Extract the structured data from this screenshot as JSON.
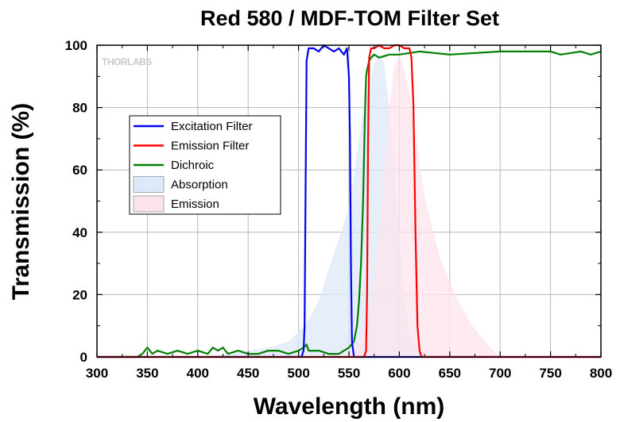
{
  "chart_data": {
    "type": "line",
    "title": "Red 580 / MDF-TOM Filter Set",
    "xlabel": "Wavelength (nm)",
    "ylabel": "Transmission (%)",
    "xlim": [
      300,
      800
    ],
    "ylim": [
      0,
      100
    ],
    "xticks": [
      300,
      350,
      400,
      450,
      500,
      550,
      600,
      650,
      700,
      750,
      800
    ],
    "yticks": [
      0,
      20,
      40,
      60,
      80,
      100
    ],
    "grid": true,
    "legend_position": "center-left",
    "watermark": "THORLABS",
    "series": [
      {
        "name": "Excitation Filter",
        "kind": "line",
        "color": "#0000ee",
        "x": [
          300,
          503,
          505,
          506,
          507,
          508,
          510,
          515,
          520,
          525,
          530,
          535,
          540,
          545,
          548,
          550,
          551,
          552,
          553,
          555,
          558,
          560,
          800
        ],
        "y": [
          0,
          0,
          2,
          10,
          55,
          95,
          99,
          99,
          98,
          100,
          99,
          98,
          99,
          97,
          99,
          90,
          70,
          30,
          5,
          0,
          0,
          0,
          0
        ]
      },
      {
        "name": "Emission Filter",
        "kind": "line",
        "color": "#ff0000",
        "x": [
          300,
          565,
          567,
          568,
          569,
          570,
          572,
          575,
          580,
          585,
          590,
          595,
          600,
          605,
          608,
          610,
          612,
          614,
          616,
          618,
          620,
          622,
          800
        ],
        "y": [
          0,
          0,
          2,
          20,
          70,
          96,
          99,
          99,
          100,
          99,
          99,
          100,
          100,
          99,
          99,
          99,
          96,
          80,
          40,
          10,
          2,
          0,
          0
        ]
      },
      {
        "name": "Dichroic",
        "kind": "line",
        "color": "#008000",
        "x": [
          300,
          340,
          345,
          350,
          355,
          360,
          370,
          380,
          390,
          400,
          410,
          415,
          420,
          425,
          430,
          440,
          450,
          460,
          470,
          480,
          490,
          500,
          505,
          508,
          510,
          520,
          530,
          540,
          550,
          555,
          558,
          560,
          562,
          564,
          566,
          567,
          568,
          570,
          572,
          575,
          580,
          590,
          600,
          620,
          650,
          700,
          720,
          750,
          760,
          780,
          790,
          800
        ],
        "y": [
          0,
          0,
          1,
          3,
          1,
          2,
          1,
          2,
          1,
          2,
          1,
          3,
          2,
          3,
          1,
          2,
          1,
          1,
          2,
          2,
          1,
          2,
          3,
          4,
          2,
          2,
          1,
          1,
          3,
          5,
          10,
          18,
          30,
          50,
          80,
          90,
          92,
          95,
          96,
          97,
          96,
          97,
          97,
          98,
          97,
          98,
          98,
          98,
          97,
          98,
          97,
          98
        ]
      },
      {
        "name": "Absorption",
        "kind": "area",
        "color": "#dde8f8",
        "x": [
          330,
          350,
          400,
          430,
          450,
          470,
          490,
          500,
          510,
          520,
          530,
          540,
          550,
          555,
          560,
          565,
          570,
          575,
          580,
          585,
          590,
          595,
          600,
          605,
          610,
          620,
          630
        ],
        "y": [
          0,
          0,
          0,
          1,
          2,
          3,
          5,
          8,
          12,
          18,
          28,
          38,
          48,
          58,
          70,
          80,
          88,
          94,
          97,
          94,
          80,
          60,
          40,
          20,
          8,
          1,
          0
        ]
      },
      {
        "name": "Emission",
        "kind": "area",
        "color": "#fce4ec",
        "x": [
          540,
          555,
          565,
          570,
          575,
          580,
          585,
          590,
          595,
          600,
          605,
          610,
          615,
          620,
          625,
          630,
          640,
          650,
          660,
          670,
          680,
          690,
          700
        ],
        "y": [
          0,
          2,
          8,
          15,
          25,
          40,
          60,
          80,
          93,
          97,
          92,
          85,
          75,
          62,
          52,
          45,
          32,
          24,
          17,
          11,
          7,
          3,
          0
        ]
      }
    ]
  }
}
